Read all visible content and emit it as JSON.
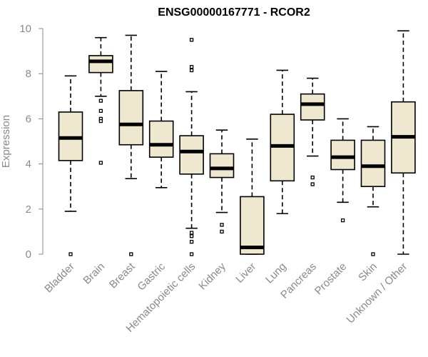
{
  "chart_data": {
    "type": "boxplot",
    "title": "ENSG00000167771 - RCOR2",
    "xlabel": "",
    "ylabel": "Expression",
    "ylim": [
      0,
      10
    ],
    "yticks": [
      0,
      2,
      4,
      6,
      8,
      10
    ],
    "box_fill": "#efe8d0",
    "categories": [
      "Bladder",
      "Brain",
      "Breast",
      "Gastric",
      "Hematopoietic cells",
      "Kidney",
      "Liver",
      "Lung",
      "Pancreas",
      "Prostate",
      "Skin",
      "Unknown / Other"
    ],
    "boxes": [
      {
        "name": "Bladder",
        "whisker_low": 1.9,
        "q1": 4.15,
        "median": 5.15,
        "q3": 6.3,
        "whisker_high": 7.9,
        "outliers": [
          0.0
        ]
      },
      {
        "name": "Brain",
        "whisker_low": 7.0,
        "q1": 8.05,
        "median": 8.55,
        "q3": 8.8,
        "whisker_high": 9.6,
        "outliers": [
          6.8,
          6.35,
          6.0,
          5.9,
          4.05
        ]
      },
      {
        "name": "Breast",
        "whisker_low": 3.35,
        "q1": 4.85,
        "median": 5.75,
        "q3": 7.25,
        "whisker_high": 9.7,
        "outliers": [
          0.0
        ]
      },
      {
        "name": "Gastric",
        "whisker_low": 2.95,
        "q1": 4.3,
        "median": 4.85,
        "q3": 5.9,
        "whisker_high": 8.1,
        "outliers": []
      },
      {
        "name": "Hematopoietic cells",
        "whisker_low": 1.15,
        "q1": 3.55,
        "median": 4.55,
        "q3": 5.25,
        "whisker_high": 7.2,
        "outliers": [
          9.5,
          8.3,
          8.15,
          0.95,
          0.8,
          0.55,
          0.0
        ]
      },
      {
        "name": "Kidney",
        "whisker_low": 1.85,
        "q1": 3.4,
        "median": 3.8,
        "q3": 4.45,
        "whisker_high": 5.5,
        "outliers": [
          1.3,
          1.0
        ]
      },
      {
        "name": "Liver",
        "whisker_low": 0.0,
        "q1": 0.0,
        "median": 0.3,
        "q3": 2.55,
        "whisker_high": 5.1,
        "outliers": []
      },
      {
        "name": "Lung",
        "whisker_low": 1.8,
        "q1": 3.25,
        "median": 4.8,
        "q3": 6.2,
        "whisker_high": 8.15,
        "outliers": []
      },
      {
        "name": "Pancreas",
        "whisker_low": 4.35,
        "q1": 5.95,
        "median": 6.65,
        "q3": 7.1,
        "whisker_high": 7.8,
        "outliers": [
          3.4,
          3.1
        ]
      },
      {
        "name": "Prostate",
        "whisker_low": 2.3,
        "q1": 3.75,
        "median": 4.3,
        "q3": 5.05,
        "whisker_high": 6.0,
        "outliers": [
          1.5
        ]
      },
      {
        "name": "Skin",
        "whisker_low": 2.1,
        "q1": 3.0,
        "median": 3.9,
        "q3": 5.05,
        "whisker_high": 5.65,
        "outliers": [
          0.0
        ]
      },
      {
        "name": "Unknown / Other",
        "whisker_low": 0.0,
        "q1": 3.6,
        "median": 5.2,
        "q3": 6.75,
        "whisker_high": 9.9,
        "outliers": []
      }
    ]
  }
}
